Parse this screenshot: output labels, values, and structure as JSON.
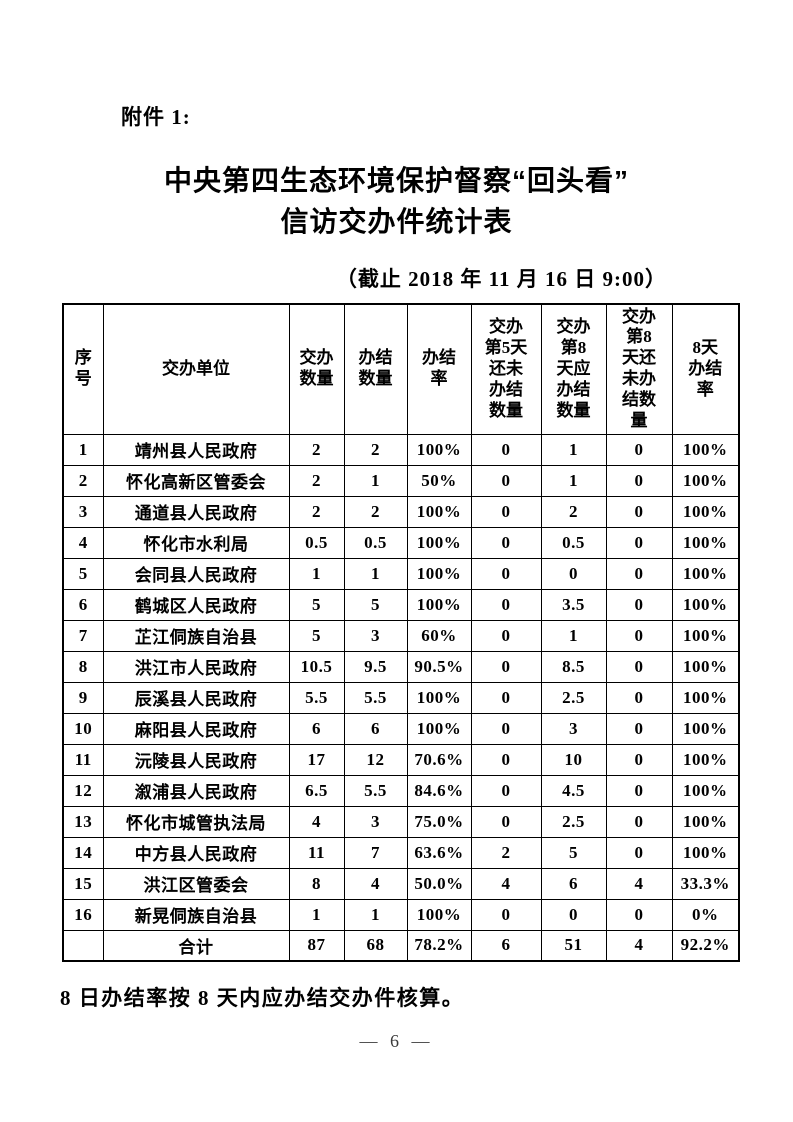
{
  "page": {
    "attachment_label": "附件 1:",
    "title_line1": "中央第四生态环境保护督察“回头看”",
    "title_line2": "信访交办件统计表",
    "date_note": "（截止 2018 年 11 月 16 日 9:00）",
    "footnote": "8 日办结率按 8 天内应办结交办件核算。",
    "page_number": "— 6 —"
  },
  "table": {
    "headers": [
      "序\n号",
      "交办单位",
      "交办\n数量",
      "办结\n数量",
      "办结\n率",
      "交办\n第5天\n还未\n办结\n数量",
      "交办\n第8\n天应\n办结\n数量",
      "交办\n第8\n天还\n未办\n结数\n量",
      "8天\n办结\n率"
    ],
    "rows": [
      [
        "1",
        "靖州县人民政府",
        "2",
        "2",
        "100%",
        "0",
        "1",
        "0",
        "100%"
      ],
      [
        "2",
        "怀化高新区管委会",
        "2",
        "1",
        "50%",
        "0",
        "1",
        "0",
        "100%"
      ],
      [
        "3",
        "通道县人民政府",
        "2",
        "2",
        "100%",
        "0",
        "2",
        "0",
        "100%"
      ],
      [
        "4",
        "怀化市水利局",
        "0.5",
        "0.5",
        "100%",
        "0",
        "0.5",
        "0",
        "100%"
      ],
      [
        "5",
        "会同县人民政府",
        "1",
        "1",
        "100%",
        "0",
        "0",
        "0",
        "100%"
      ],
      [
        "6",
        "鹤城区人民政府",
        "5",
        "5",
        "100%",
        "0",
        "3.5",
        "0",
        "100%"
      ],
      [
        "7",
        "芷江侗族自治县",
        "5",
        "3",
        "60%",
        "0",
        "1",
        "0",
        "100%"
      ],
      [
        "8",
        "洪江市人民政府",
        "10.5",
        "9.5",
        "90.5%",
        "0",
        "8.5",
        "0",
        "100%"
      ],
      [
        "9",
        "辰溪县人民政府",
        "5.5",
        "5.5",
        "100%",
        "0",
        "2.5",
        "0",
        "100%"
      ],
      [
        "10",
        "麻阳县人民政府",
        "6",
        "6",
        "100%",
        "0",
        "3",
        "0",
        "100%"
      ],
      [
        "11",
        "沅陵县人民政府",
        "17",
        "12",
        "70.6%",
        "0",
        "10",
        "0",
        "100%"
      ],
      [
        "12",
        "溆浦县人民政府",
        "6.5",
        "5.5",
        "84.6%",
        "0",
        "4.5",
        "0",
        "100%"
      ],
      [
        "13",
        "怀化市城管执法局",
        "4",
        "3",
        "75.0%",
        "0",
        "2.5",
        "0",
        "100%"
      ],
      [
        "14",
        "中方县人民政府",
        "11",
        "7",
        "63.6%",
        "2",
        "5",
        "0",
        "100%"
      ],
      [
        "15",
        "洪江区管委会",
        "8",
        "4",
        "50.0%",
        "4",
        "6",
        "4",
        "33.3%"
      ],
      [
        "16",
        "新晃侗族自治县",
        "1",
        "1",
        "100%",
        "0",
        "0",
        "0",
        "0%"
      ]
    ],
    "total_row": [
      "",
      "合计",
      "87",
      "68",
      "78.2%",
      "6",
      "51",
      "4",
      "92.2%"
    ]
  }
}
